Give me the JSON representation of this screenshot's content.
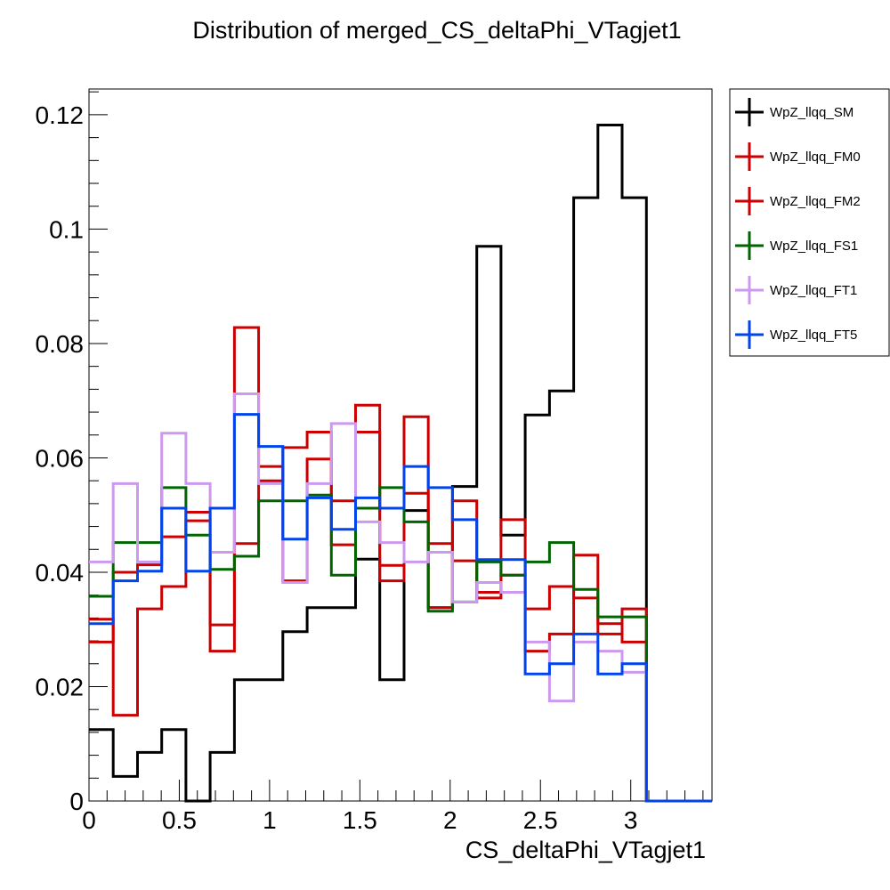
{
  "chart_data": {
    "type": "step-histogram",
    "title": "Distribution of merged_CS_deltaPhi_VTagjet1",
    "xlabel": "CS_deltaPhi_VTagjet1",
    "ylabel": "",
    "xlim": [
      0,
      3.45
    ],
    "ylim": [
      0,
      0.1245
    ],
    "x_ticks": [
      0,
      0.5,
      1,
      1.5,
      2,
      2.5,
      3
    ],
    "x_tick_labels": [
      "0",
      "0.5",
      "1",
      "1.5",
      "2",
      "2.5",
      "3"
    ],
    "y_ticks": [
      0,
      0.02,
      0.04,
      0.06,
      0.08,
      0.1,
      0.12
    ],
    "y_tick_labels": [
      "0",
      "0.02",
      "0.04",
      "0.06",
      "0.08",
      "0.1",
      "0.12"
    ],
    "bin_edges": [
      0,
      0.1342,
      0.2684,
      0.4026,
      0.5368,
      0.671,
      0.8052,
      0.9394,
      1.0736,
      1.2078,
      1.342,
      1.4762,
      1.6104,
      1.7446,
      1.8788,
      2.013,
      2.1472,
      2.2814,
      2.4156,
      2.5498,
      2.684,
      2.8182,
      2.9524,
      3.0866,
      3.2208,
      3.45
    ],
    "legend_position": "top-right outside",
    "grid": false,
    "series": [
      {
        "name": "WpZ_llqq_SM",
        "color": "#000000",
        "values": [
          0.0125,
          0.0043,
          0.0085,
          0.0125,
          0.0,
          0.0085,
          0.0212,
          0.0212,
          0.0296,
          0.0338,
          0.0338,
          0.0423,
          0.0212,
          0.0508,
          0.0338,
          0.055,
          0.097,
          0.0465,
          0.0675,
          0.0717,
          0.1055,
          0.1182,
          0.1055,
          0.0,
          0.0
        ]
      },
      {
        "name": "WpZ_llqq_FM0",
        "color": "#cc0000",
        "values": [
          0.0278,
          0.04,
          0.0413,
          0.0462,
          0.0505,
          0.0308,
          0.045,
          0.056,
          0.0618,
          0.0645,
          0.0525,
          0.0692,
          0.0385,
          0.0538,
          0.045,
          0.042,
          0.0355,
          0.0492,
          0.0336,
          0.0375,
          0.0355,
          0.031,
          0.0278,
          0.0,
          0.0
        ]
      },
      {
        "name": "WpZ_llqq_FM2",
        "color": "#cc0000",
        "values": [
          0.0318,
          0.015,
          0.0336,
          0.0375,
          0.049,
          0.0262,
          0.0828,
          0.0585,
          0.0385,
          0.0598,
          0.0448,
          0.0645,
          0.0412,
          0.0672,
          0.0338,
          0.0525,
          0.0365,
          0.0395,
          0.0262,
          0.0292,
          0.043,
          0.0292,
          0.0336,
          0.0,
          0.0
        ]
      },
      {
        "name": "WpZ_llqq_FS1",
        "color": "#006400",
        "values": [
          0.0358,
          0.0452,
          0.0452,
          0.0548,
          0.0465,
          0.0405,
          0.0428,
          0.0525,
          0.0525,
          0.0535,
          0.0395,
          0.0512,
          0.0548,
          0.0488,
          0.0332,
          0.0348,
          0.0418,
          0.0395,
          0.0418,
          0.0452,
          0.037,
          0.0322,
          0.0322,
          0.0,
          0.0
        ]
      },
      {
        "name": "WpZ_llqq_FT1",
        "color": "#cc99ee",
        "values": [
          0.0418,
          0.0555,
          0.0418,
          0.0643,
          0.0555,
          0.0435,
          0.0712,
          0.0555,
          0.0382,
          0.0555,
          0.066,
          0.0488,
          0.0452,
          0.0418,
          0.0435,
          0.0348,
          0.0382,
          0.0365,
          0.0278,
          0.0175,
          0.0278,
          0.0262,
          0.0225,
          0.0,
          0.0
        ]
      },
      {
        "name": "WpZ_llqq_FT5",
        "color": "#0044ee",
        "values": [
          0.031,
          0.0385,
          0.0402,
          0.0512,
          0.0402,
          0.0512,
          0.0676,
          0.062,
          0.0458,
          0.053,
          0.0475,
          0.053,
          0.0512,
          0.0585,
          0.0548,
          0.0492,
          0.0422,
          0.0422,
          0.0222,
          0.024,
          0.0292,
          0.0222,
          0.024,
          0.0,
          0.0
        ]
      }
    ]
  }
}
